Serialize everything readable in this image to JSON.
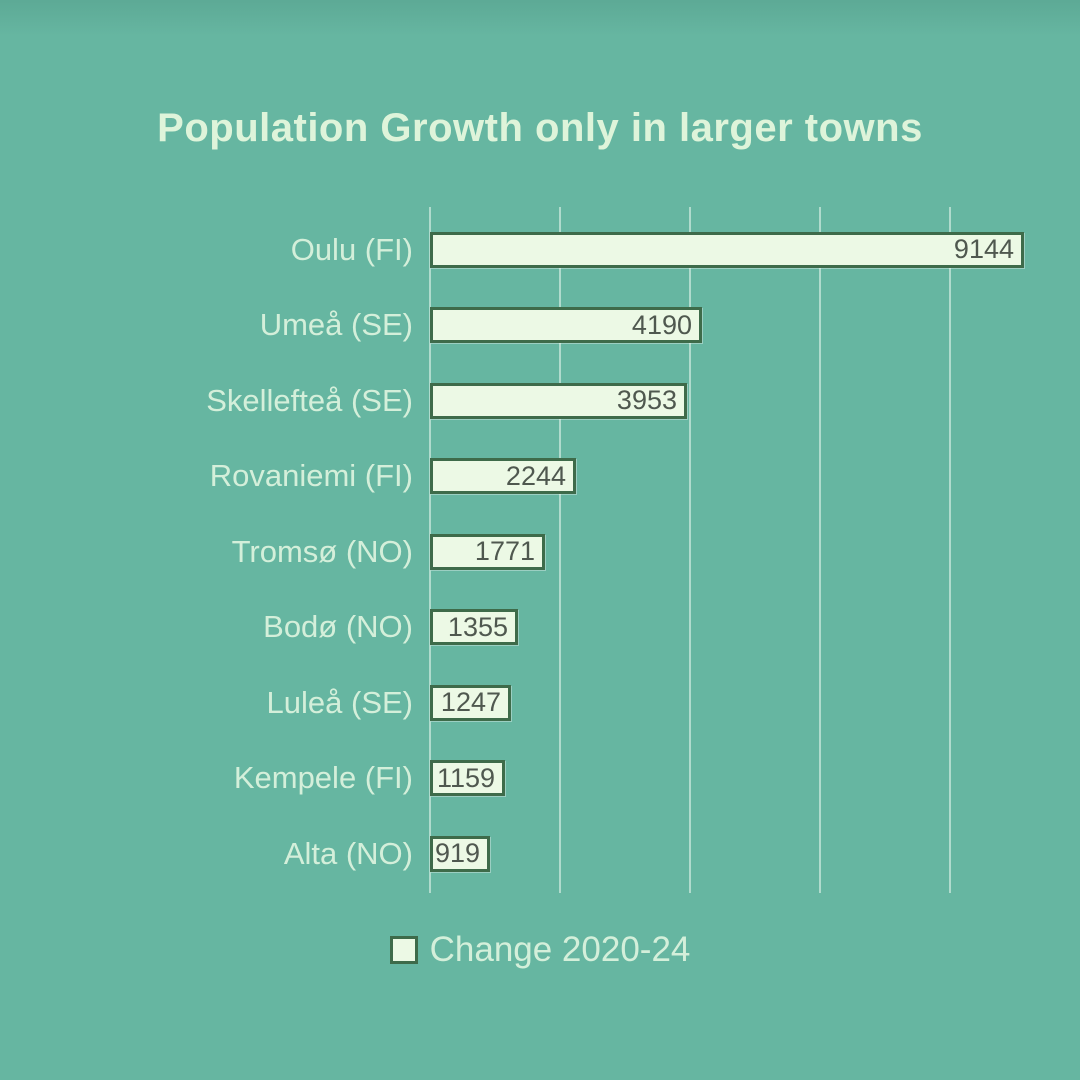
{
  "title": "Population Growth only in larger towns",
  "legend": {
    "label": "Change 2020-24"
  },
  "colors": {
    "background": "#66b6a1",
    "title_text": "#def4da",
    "label_text": "#d4efda",
    "bar_fill": "#ecf9e5",
    "bar_border": "#3e6b4a",
    "value_text": "#4f584f",
    "gridline": "rgba(236,250,242,0.55)"
  },
  "chart_data": {
    "type": "bar",
    "orientation": "horizontal",
    "title": "Population Growth only in larger towns",
    "categories": [
      "Oulu (FI)",
      "Umeå (SE)",
      "Skellefteå (SE)",
      "Rovaniemi (FI)",
      "Tromsø (NO)",
      "Bodø (NO)",
      "Luleå (SE)",
      "Kempele (FI)",
      "Alta (NO)"
    ],
    "values": [
      9144,
      4190,
      3953,
      2244,
      1771,
      1355,
      1247,
      1159,
      919
    ],
    "value_labels": [
      "9144",
      "4190",
      "3953",
      "2244",
      "1771",
      "1355",
      "1247",
      "1159",
      "919"
    ],
    "xlabel": "",
    "ylabel": "",
    "xlim": [
      0,
      9200
    ],
    "gridline_interval": 2000,
    "grid": true,
    "legend_entries": [
      "Change 2020-24"
    ],
    "legend_position": "bottom"
  }
}
